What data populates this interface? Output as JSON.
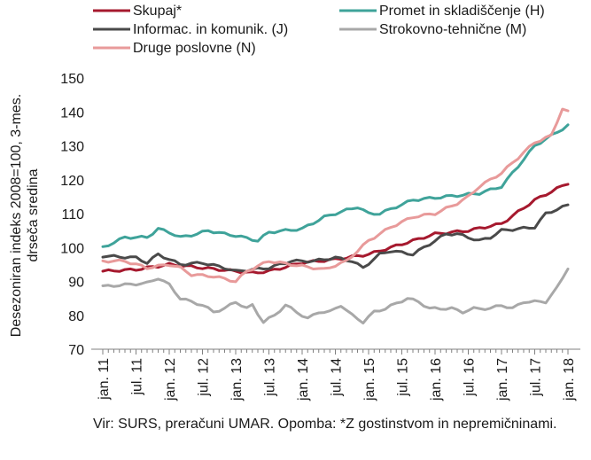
{
  "chart_data": {
    "type": "line",
    "ylabel_lines": [
      "Desezoniran indeks 2008=100, 3-mes.",
      "drseča sredina"
    ],
    "ylim": [
      70,
      150
    ],
    "yticks": [
      70,
      80,
      90,
      100,
      110,
      120,
      130,
      140,
      150
    ],
    "x_start": "2011-01",
    "x_end": "2018-01",
    "xticks": [
      "jan. 11",
      "jul. 11",
      "jan. 12",
      "jul. 12",
      "jan. 13",
      "jul. 13",
      "jan. 14",
      "jul. 14",
      "jan. 15",
      "jul. 15",
      "jan. 16",
      "jul. 16",
      "jan. 17",
      "jul. 17",
      "jan. 18"
    ],
    "grid": false,
    "legend_position": "top",
    "series": [
      {
        "name": "Skupaj*",
        "color": "#a6192e",
        "anchors": [
          [
            0,
            93
          ],
          [
            6,
            93.5
          ],
          [
            12,
            95
          ],
          [
            18,
            94
          ],
          [
            24,
            93
          ],
          [
            27,
            92.5
          ],
          [
            30,
            93
          ],
          [
            36,
            95.5
          ],
          [
            42,
            96.5
          ],
          [
            48,
            98
          ],
          [
            54,
            101
          ],
          [
            60,
            104
          ],
          [
            66,
            105
          ],
          [
            72,
            107
          ],
          [
            78,
            114
          ],
          [
            84,
            119
          ]
        ]
      },
      {
        "name": "Promet in skladiščenje (H)",
        "color": "#3fa39a",
        "anchors": [
          [
            0,
            100
          ],
          [
            4,
            103
          ],
          [
            8,
            103
          ],
          [
            10,
            105.5
          ],
          [
            12,
            104.5
          ],
          [
            14,
            103
          ],
          [
            17,
            104
          ],
          [
            19,
            105
          ],
          [
            22,
            104
          ],
          [
            24,
            103.5
          ],
          [
            28,
            102
          ],
          [
            30,
            104.5
          ],
          [
            36,
            105.5
          ],
          [
            40,
            109
          ],
          [
            44,
            111
          ],
          [
            46,
            112
          ],
          [
            48,
            110
          ],
          [
            50,
            110
          ],
          [
            56,
            114
          ],
          [
            62,
            115
          ],
          [
            68,
            116
          ],
          [
            72,
            118
          ],
          [
            78,
            130
          ],
          [
            84,
            136
          ]
        ]
      },
      {
        "name": "Informac. in komunik. (J)",
        "color": "#4a4a4a",
        "anchors": [
          [
            0,
            97.5
          ],
          [
            6,
            97
          ],
          [
            8,
            95.5
          ],
          [
            10,
            98
          ],
          [
            14,
            95
          ],
          [
            18,
            95.5
          ],
          [
            22,
            94
          ],
          [
            24,
            93
          ],
          [
            30,
            94
          ],
          [
            34,
            96
          ],
          [
            38,
            96
          ],
          [
            42,
            97
          ],
          [
            45,
            96
          ],
          [
            47,
            94
          ],
          [
            50,
            98
          ],
          [
            52,
            99
          ],
          [
            56,
            98
          ],
          [
            60,
            102
          ],
          [
            62,
            104
          ],
          [
            64,
            104
          ],
          [
            68,
            102
          ],
          [
            70,
            103
          ],
          [
            72,
            105
          ],
          [
            78,
            106
          ],
          [
            80,
            110
          ],
          [
            84,
            112.5
          ]
        ]
      },
      {
        "name": "Strokovno-tehnične (M)",
        "color": "#a8a8a8",
        "anchors": [
          [
            0,
            88.5
          ],
          [
            4,
            89
          ],
          [
            8,
            89.5
          ],
          [
            10,
            91
          ],
          [
            12,
            89
          ],
          [
            14,
            85
          ],
          [
            18,
            83
          ],
          [
            20,
            81
          ],
          [
            22,
            82
          ],
          [
            24,
            84
          ],
          [
            26,
            82
          ],
          [
            27,
            83
          ],
          [
            29,
            78
          ],
          [
            31,
            80
          ],
          [
            33,
            83
          ],
          [
            35,
            81
          ],
          [
            37,
            79
          ],
          [
            39,
            81
          ],
          [
            41,
            81
          ],
          [
            43,
            83
          ],
          [
            45,
            80
          ],
          [
            47,
            78
          ],
          [
            49,
            81
          ],
          [
            51,
            82
          ],
          [
            55,
            85
          ],
          [
            57,
            84
          ],
          [
            59,
            82
          ],
          [
            61,
            82
          ],
          [
            63,
            82
          ],
          [
            65,
            81
          ],
          [
            67,
            82
          ],
          [
            70,
            82
          ],
          [
            72,
            83
          ],
          [
            74,
            82
          ],
          [
            76,
            84
          ],
          [
            78,
            84
          ],
          [
            80,
            84
          ],
          [
            82,
            88
          ],
          [
            84,
            94
          ]
        ]
      },
      {
        "name": "Druge poslovne (N)",
        "color": "#e89a9a",
        "anchors": [
          [
            0,
            96
          ],
          [
            4,
            96
          ],
          [
            8,
            94
          ],
          [
            12,
            95
          ],
          [
            14,
            94
          ],
          [
            16,
            92
          ],
          [
            20,
            91.5
          ],
          [
            24,
            90
          ],
          [
            26,
            93
          ],
          [
            30,
            96
          ],
          [
            34,
            95
          ],
          [
            38,
            94
          ],
          [
            40,
            93.5
          ],
          [
            44,
            96
          ],
          [
            48,
            102
          ],
          [
            52,
            106
          ],
          [
            56,
            109
          ],
          [
            60,
            110
          ],
          [
            64,
            113
          ],
          [
            66,
            115
          ],
          [
            68,
            118
          ],
          [
            72,
            122
          ],
          [
            78,
            131
          ],
          [
            81,
            133
          ],
          [
            83,
            141
          ],
          [
            84,
            140
          ]
        ]
      }
    ]
  },
  "source_text": "Vir: SURS, preračuni UMAR. Opomba: *Z gostinstvom in nepremičninami."
}
